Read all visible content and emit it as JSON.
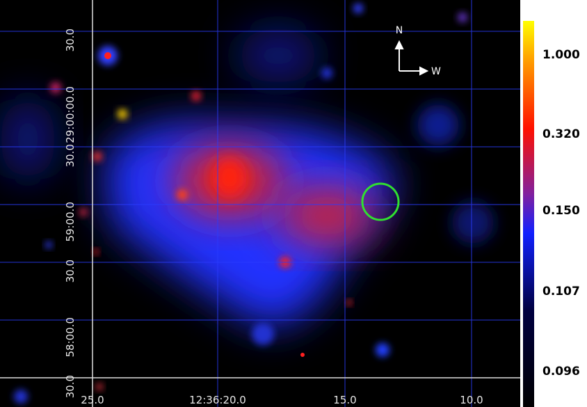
{
  "image": {
    "x_axis_labels": [
      "25.0",
      "12:36:20.0",
      "15.0",
      "10.0"
    ],
    "y_axis_labels": [
      "30.0",
      "29:00:00.0",
      "30.0",
      "59:00.0",
      "30.0",
      "58:00.0",
      "30.0"
    ],
    "compass": {
      "north": "N",
      "west": "W"
    }
  },
  "colorbar": {
    "ticks": [
      "1.000",
      "0.320",
      "0.150",
      "0.107",
      "0.096"
    ]
  }
}
